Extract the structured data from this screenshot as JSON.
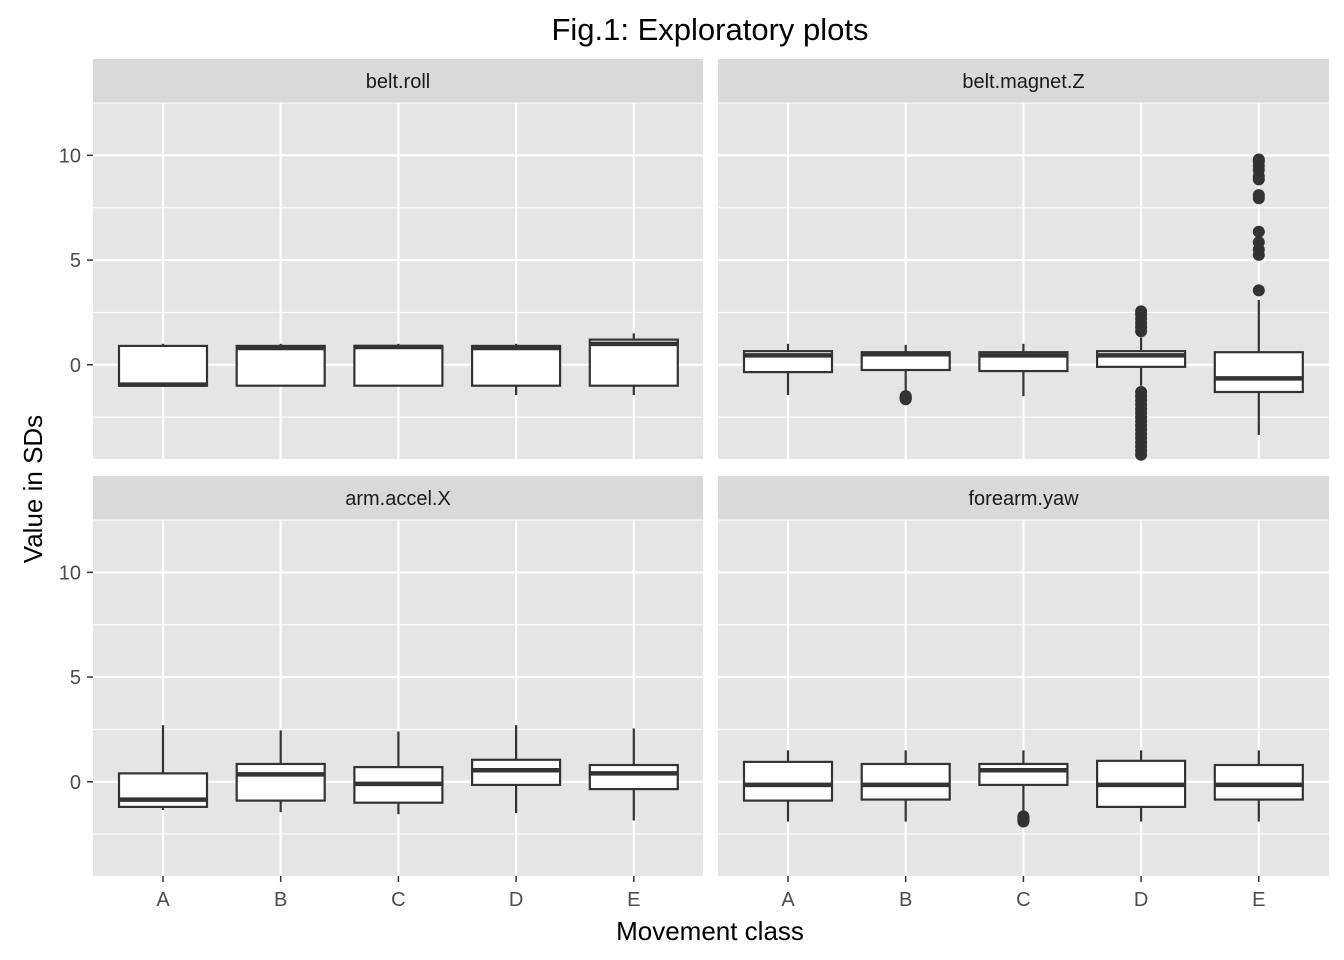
{
  "chart_data": {
    "type": "boxplot",
    "title": "Fig.1: Exploratory plots",
    "xlabel": "Movement class",
    "ylabel": "Value in SDs",
    "categories": [
      "A",
      "B",
      "C",
      "D",
      "E"
    ],
    "ylim": [
      -4.5,
      12.5
    ],
    "yticks": [
      0,
      5,
      10
    ],
    "layout": "2x2 facets, shared axes",
    "grid": true,
    "colors": {
      "panel_bg": "#e5e5e5",
      "strip_bg": "#d9d9d9",
      "grid": "#ffffff",
      "box_fill": "#ffffff",
      "box_line": "#333333",
      "outlier": "#333333"
    },
    "panels": [
      {
        "name": "belt.roll",
        "boxes": [
          {
            "category": "A",
            "whisker_low": -1.05,
            "q1": -1.0,
            "median": -0.95,
            "q3": 0.9,
            "whisker_high": 1.0,
            "outliers": []
          },
          {
            "category": "B",
            "whisker_low": -1.0,
            "q1": -1.0,
            "median": 0.8,
            "q3": 0.9,
            "whisker_high": 1.0,
            "outliers": []
          },
          {
            "category": "C",
            "whisker_low": -1.0,
            "q1": -1.0,
            "median": 0.85,
            "q3": 0.9,
            "whisker_high": 1.0,
            "outliers": []
          },
          {
            "category": "D",
            "whisker_low": -1.45,
            "q1": -1.0,
            "median": 0.8,
            "q3": 0.9,
            "whisker_high": 1.0,
            "outliers": []
          },
          {
            "category": "E",
            "whisker_low": -1.45,
            "q1": -1.0,
            "median": 1.0,
            "q3": 1.2,
            "whisker_high": 1.5,
            "outliers": []
          }
        ]
      },
      {
        "name": "belt.magnet.Z",
        "boxes": [
          {
            "category": "A",
            "whisker_low": -1.45,
            "q1": -0.35,
            "median": 0.45,
            "q3": 0.65,
            "whisker_high": 1.0,
            "outliers": []
          },
          {
            "category": "B",
            "whisker_low": -1.45,
            "q1": -0.25,
            "median": 0.5,
            "q3": 0.6,
            "whisker_high": 0.95,
            "outliers": [
              -1.5,
              -1.55,
              -1.6,
              -1.62,
              -1.65
            ]
          },
          {
            "category": "C",
            "whisker_low": -1.5,
            "q1": -0.3,
            "median": 0.45,
            "q3": 0.6,
            "whisker_high": 1.0,
            "outliers": []
          },
          {
            "category": "D",
            "whisker_low": -1.0,
            "q1": -0.1,
            "median": 0.45,
            "q3": 0.65,
            "whisker_high": 1.3,
            "outliers": [
              1.6,
              1.8,
              2.0,
              2.2,
              2.4,
              2.55,
              -1.3,
              -1.5,
              -1.7,
              -1.9,
              -2.1,
              -2.3,
              -2.5,
              -2.7,
              -2.9,
              -3.1,
              -3.3,
              -3.5,
              -3.7,
              -3.9,
              -4.1,
              -4.3
            ]
          },
          {
            "category": "E",
            "whisker_low": -3.35,
            "q1": -1.3,
            "median": -0.65,
            "q3": 0.6,
            "whisker_high": 3.1,
            "outliers": [
              3.55,
              5.25,
              5.5,
              5.85,
              6.35,
              7.95,
              8.1,
              8.85,
              9.0,
              9.3,
              9.5,
              9.7,
              9.8
            ]
          }
        ]
      },
      {
        "name": "arm.accel.X",
        "boxes": [
          {
            "category": "A",
            "whisker_low": -1.35,
            "q1": -1.2,
            "median": -0.85,
            "q3": 0.4,
            "whisker_high": 2.7,
            "outliers": []
          },
          {
            "category": "B",
            "whisker_low": -1.45,
            "q1": -0.9,
            "median": 0.35,
            "q3": 0.85,
            "whisker_high": 2.45,
            "outliers": []
          },
          {
            "category": "C",
            "whisker_low": -1.55,
            "q1": -1.0,
            "median": -0.1,
            "q3": 0.7,
            "whisker_high": 2.4,
            "outliers": []
          },
          {
            "category": "D",
            "whisker_low": -1.5,
            "q1": -0.15,
            "median": 0.55,
            "q3": 1.05,
            "whisker_high": 2.7,
            "outliers": []
          },
          {
            "category": "E",
            "whisker_low": -1.85,
            "q1": -0.35,
            "median": 0.4,
            "q3": 0.8,
            "whisker_high": 2.55,
            "outliers": []
          }
        ]
      },
      {
        "name": "forearm.yaw",
        "boxes": [
          {
            "category": "A",
            "whisker_low": -1.9,
            "q1": -0.9,
            "median": -0.15,
            "q3": 0.95,
            "whisker_high": 1.5,
            "outliers": []
          },
          {
            "category": "B",
            "whisker_low": -1.9,
            "q1": -0.85,
            "median": -0.15,
            "q3": 0.85,
            "whisker_high": 1.5,
            "outliers": []
          },
          {
            "category": "C",
            "whisker_low": -1.45,
            "q1": -0.15,
            "median": 0.55,
            "q3": 0.85,
            "whisker_high": 1.5,
            "outliers": [
              -1.65,
              -1.7,
              -1.75,
              -1.8,
              -1.85,
              -1.9
            ]
          },
          {
            "category": "D",
            "whisker_low": -1.9,
            "q1": -1.2,
            "median": -0.15,
            "q3": 1.0,
            "whisker_high": 1.5,
            "outliers": []
          },
          {
            "category": "E",
            "whisker_low": -1.9,
            "q1": -0.85,
            "median": -0.15,
            "q3": 0.8,
            "whisker_high": 1.5,
            "outliers": []
          }
        ]
      }
    ]
  }
}
